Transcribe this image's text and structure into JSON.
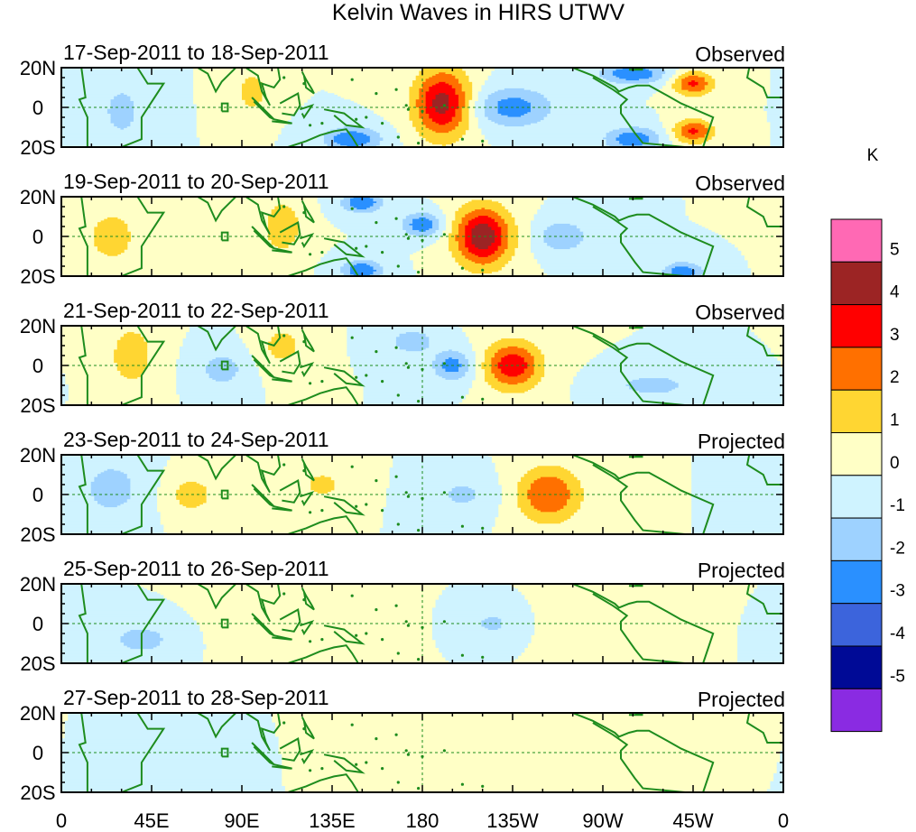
{
  "chart_data": {
    "type": "heatmap",
    "title": "Kelvin Waves in HIRS UTWV",
    "x_ticks": [
      "0",
      "45E",
      "90E",
      "135E",
      "180",
      "135W",
      "90W",
      "45W",
      "0"
    ],
    "x_range_deg_east": [
      0,
      360
    ],
    "y_ticks": [
      "20N",
      "0",
      "20S"
    ],
    "y_range_deg": [
      -20,
      20
    ],
    "colorbar": {
      "unit": "K",
      "levels": [
        "5",
        "4",
        "3",
        "2",
        "1",
        "0",
        "-1",
        "-2",
        "-3",
        "-4",
        "-5"
      ],
      "colors": [
        "#ff69b4",
        "#9c2424",
        "#ff0000",
        "#ff7000",
        "#ffd632",
        "#ffffc6",
        "#cff3ff",
        "#9ed2ff",
        "#2a90ff",
        "#3c64dc",
        "#000a96",
        "#8a2be2"
      ]
    },
    "panels": [
      {
        "date_range": "17-Sep-2011 to 18-Sep-2011",
        "status": "Observed",
        "anomalies": [
          {
            "lon": 190,
            "lat": 2,
            "peak_K": 4.5,
            "lon_halfwidth": 14,
            "lat_halfwidth": 17
          },
          {
            "lon": 315,
            "lat": 12,
            "peak_K": 3.2,
            "lon_halfwidth": 10,
            "lat_halfwidth": 6
          },
          {
            "lon": 315,
            "lat": -12,
            "peak_K": 3.2,
            "lon_halfwidth": 10,
            "lat_halfwidth": 6
          },
          {
            "lon": 225,
            "lat": 0,
            "peak_K": -2.5,
            "lon_halfwidth": 20,
            "lat_halfwidth": 10
          },
          {
            "lon": 145,
            "lat": -16,
            "peak_K": -3.0,
            "lon_halfwidth": 14,
            "lat_halfwidth": 6
          },
          {
            "lon": 285,
            "lat": 17,
            "peak_K": -3.0,
            "lon_halfwidth": 16,
            "lat_halfwidth": 5
          },
          {
            "lon": 285,
            "lat": -16,
            "peak_K": -2.8,
            "lon_halfwidth": 14,
            "lat_halfwidth": 6
          },
          {
            "lon": 95,
            "lat": 8,
            "peak_K": 1.5,
            "lon_halfwidth": 8,
            "lat_halfwidth": 12
          },
          {
            "lon": 30,
            "lat": -2,
            "peak_K": -1.5,
            "lon_halfwidth": 10,
            "lat_halfwidth": 14
          }
        ]
      },
      {
        "date_range": "19-Sep-2011 to 20-Sep-2011",
        "status": "Observed",
        "anomalies": [
          {
            "lon": 210,
            "lat": 0,
            "peak_K": 4.8,
            "lon_halfwidth": 14,
            "lat_halfwidth": 15
          },
          {
            "lon": 180,
            "lat": 6,
            "peak_K": -2.8,
            "lon_halfwidth": 10,
            "lat_halfwidth": 6
          },
          {
            "lon": 250,
            "lat": 0,
            "peak_K": -2.0,
            "lon_halfwidth": 12,
            "lat_halfwidth": 8
          },
          {
            "lon": 150,
            "lat": -17,
            "peak_K": -3.0,
            "lon_halfwidth": 10,
            "lat_halfwidth": 5
          },
          {
            "lon": 150,
            "lat": 17,
            "peak_K": -3.0,
            "lon_halfwidth": 10,
            "lat_halfwidth": 5
          },
          {
            "lon": 310,
            "lat": -18,
            "peak_K": -2.8,
            "lon_halfwidth": 10,
            "lat_halfwidth": 5
          },
          {
            "lon": 25,
            "lat": 0,
            "peak_K": 1.5,
            "lon_halfwidth": 14,
            "lat_halfwidth": 15
          },
          {
            "lon": 110,
            "lat": 5,
            "peak_K": 1.8,
            "lon_halfwidth": 10,
            "lat_halfwidth": 14
          }
        ]
      },
      {
        "date_range": "21-Sep-2011 to 22-Sep-2011",
        "status": "Observed",
        "anomalies": [
          {
            "lon": 225,
            "lat": 0,
            "peak_K": 3.8,
            "lon_halfwidth": 14,
            "lat_halfwidth": 12
          },
          {
            "lon": 195,
            "lat": 0,
            "peak_K": -2.5,
            "lon_halfwidth": 10,
            "lat_halfwidth": 8
          },
          {
            "lon": 175,
            "lat": 12,
            "peak_K": -2.0,
            "lon_halfwidth": 10,
            "lat_halfwidth": 6
          },
          {
            "lon": 35,
            "lat": 5,
            "peak_K": 2.0,
            "lon_halfwidth": 10,
            "lat_halfwidth": 14
          },
          {
            "lon": 110,
            "lat": 10,
            "peak_K": 1.5,
            "lon_halfwidth": 10,
            "lat_halfwidth": 10
          },
          {
            "lon": 80,
            "lat": -2,
            "peak_K": -1.8,
            "lon_halfwidth": 10,
            "lat_halfwidth": 8
          },
          {
            "lon": 295,
            "lat": -10,
            "peak_K": -1.5,
            "lon_halfwidth": 20,
            "lat_halfwidth": 6
          }
        ]
      },
      {
        "date_range": "23-Sep-2011 to 24-Sep-2011",
        "status": "Projected",
        "anomalies": [
          {
            "lon": 243,
            "lat": 0,
            "peak_K": 3.0,
            "lon_halfwidth": 16,
            "lat_halfwidth": 14
          },
          {
            "lon": 65,
            "lat": 0,
            "peak_K": 1.5,
            "lon_halfwidth": 12,
            "lat_halfwidth": 10
          },
          {
            "lon": 25,
            "lat": 3,
            "peak_K": -1.5,
            "lon_halfwidth": 16,
            "lat_halfwidth": 15
          },
          {
            "lon": 200,
            "lat": 0,
            "peak_K": -1.2,
            "lon_halfwidth": 16,
            "lat_halfwidth": 10
          },
          {
            "lon": 130,
            "lat": 5,
            "peak_K": 1.2,
            "lon_halfwidth": 14,
            "lat_halfwidth": 10
          }
        ]
      },
      {
        "date_range": "25-Sep-2011 to 26-Sep-2011",
        "status": "Projected",
        "anomalies": [
          {
            "lon": 40,
            "lat": -8,
            "peak_K": -1.3,
            "lon_halfwidth": 20,
            "lat_halfwidth": 10
          },
          {
            "lon": 215,
            "lat": 0,
            "peak_K": -1.2,
            "lon_halfwidth": 12,
            "lat_halfwidth": 8
          },
          {
            "lon": 110,
            "lat": 0,
            "peak_K": 0.8,
            "lon_halfwidth": 30,
            "lat_halfwidth": 18
          },
          {
            "lon": 270,
            "lat": 0,
            "peak_K": 0.7,
            "lon_halfwidth": 22,
            "lat_halfwidth": 16
          }
        ]
      },
      {
        "date_range": "27-Sep-2011 to 28-Sep-2011",
        "status": "Projected",
        "anomalies": [
          {
            "lon": 60,
            "lat": -5,
            "peak_K": -0.8,
            "lon_halfwidth": 30,
            "lat_halfwidth": 16
          },
          {
            "lon": 150,
            "lat": 0,
            "peak_K": 0.8,
            "lon_halfwidth": 25,
            "lat_halfwidth": 18
          },
          {
            "lon": 320,
            "lat": 5,
            "peak_K": 0.6,
            "lon_halfwidth": 20,
            "lat_halfwidth": 14
          }
        ]
      }
    ]
  }
}
